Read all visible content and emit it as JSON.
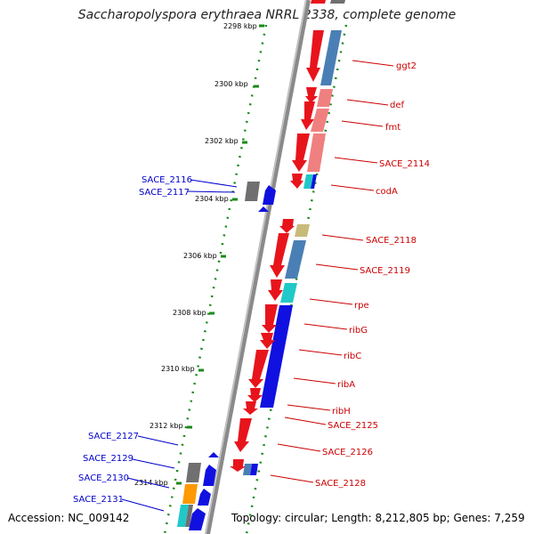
{
  "title": "Saccharopolyspora erythraea NRRL 2338, complete genome",
  "footer": {
    "accession": "Accession: NC_009142",
    "topology": "Topology: circular; Length: 8,212,805 bp; Genes: 7,259"
  },
  "ruler_labels": [
    "2298 kbp",
    "2300 kbp",
    "2302 kbp",
    "2304 kbp",
    "2306 kbp",
    "2308 kbp",
    "2310 kbp",
    "2312 kbp",
    "2314 kbp"
  ],
  "right_labels": [
    "ggt2",
    "def",
    "fmt",
    "SACE_2114",
    "codA",
    "SACE_2118",
    "SACE_2119",
    "rpe",
    "ribG",
    "ribC",
    "ribA",
    "ribH",
    "SACE_2125",
    "SACE_2126",
    "SACE_2128"
  ],
  "left_labels": [
    "SACE_2116",
    "SACE_2117",
    "SACE_2127",
    "SACE_2129",
    "SACE_2130",
    "SACE_2131"
  ],
  "colors": {
    "gene_red": "#e8141c",
    "gene_blue": "#1010e0",
    "backbone": "#8a8a8a",
    "dotted_track": "#1a8a1a",
    "cog_steelblue": "#4a7fb5",
    "cog_pink": "#f08080",
    "cog_cyan": "#20c8c8",
    "cog_gray": "#707070",
    "cog_orange": "#ff9900",
    "cog_khaki": "#c8bb78",
    "label_red": "#cc0000",
    "label_blue": "#0000cc"
  }
}
